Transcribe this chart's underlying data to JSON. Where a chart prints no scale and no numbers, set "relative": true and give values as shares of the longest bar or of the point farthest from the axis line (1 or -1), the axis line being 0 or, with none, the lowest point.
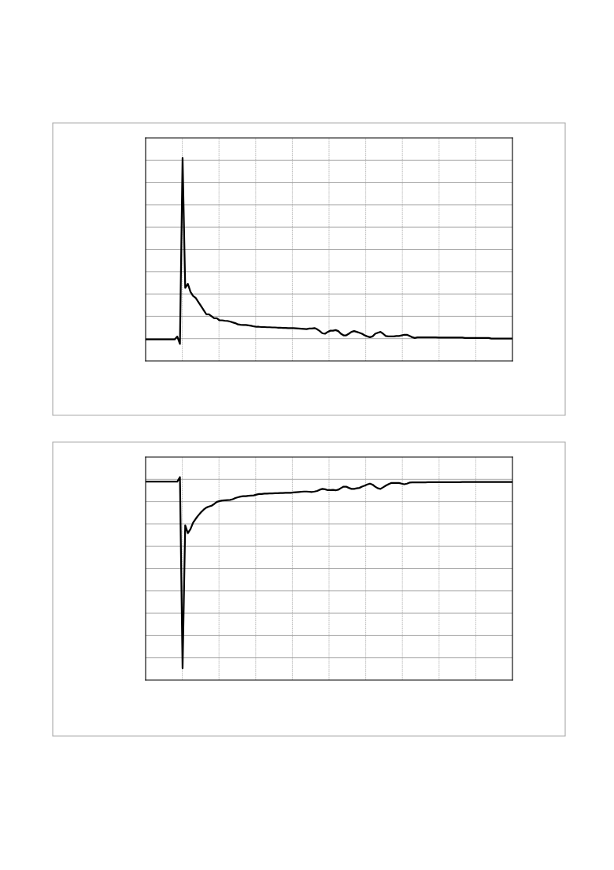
{
  "chart_data": [
    {
      "type": "line",
      "relative": true,
      "grid": true,
      "categories": [
        null,
        null,
        null,
        null,
        null,
        null,
        null,
        null,
        null,
        null,
        null,
        null,
        null,
        null,
        null,
        null,
        null,
        null,
        null,
        null,
        null,
        null,
        null,
        null,
        null,
        null,
        null,
        null,
        null,
        null,
        null,
        null,
        null,
        null,
        null,
        null,
        null,
        null,
        null,
        null,
        null,
        null,
        null,
        null,
        null,
        null,
        null,
        null,
        null,
        null,
        null,
        null,
        null,
        null,
        null,
        null,
        null,
        null,
        null,
        null,
        null,
        null,
        null,
        null,
        null,
        null,
        null,
        null,
        null,
        null,
        null,
        null,
        null,
        null,
        null,
        null,
        null,
        null,
        null,
        null,
        null,
        null,
        null,
        null,
        null,
        null,
        null,
        null,
        null,
        null,
        null,
        null,
        null,
        null,
        null,
        null,
        null,
        null,
        null,
        null,
        null,
        null,
        null,
        null,
        null,
        null,
        null,
        null,
        null,
        null,
        null,
        null,
        null,
        null,
        null,
        null,
        null,
        null,
        null,
        null,
        null,
        null,
        null,
        null,
        null,
        null,
        null,
        null,
        null,
        null,
        null,
        null,
        null,
        null,
        null,
        null,
        null,
        null,
        null,
        null
      ],
      "series": [
        {
          "color": "#000000",
          "values": [
            0.106,
            0.106,
            0.106,
            0.106,
            0.106,
            0.106,
            0.106,
            0.106,
            0.106,
            0.106,
            0.106,
            0.106,
            0.12,
            0.084,
            1.0,
            0.36,
            0.38,
            0.34,
            0.32,
            0.31,
            0.29,
            0.27,
            0.25,
            0.23,
            0.23,
            0.22,
            0.21,
            0.21,
            0.2,
            0.2,
            0.198,
            0.197,
            0.194,
            0.19,
            0.186,
            0.18,
            0.178,
            0.177,
            0.177,
            0.175,
            0.173,
            0.17,
            0.168,
            0.168,
            0.167,
            0.167,
            0.166,
            0.166,
            0.165,
            0.165,
            0.164,
            0.164,
            0.163,
            0.163,
            0.162,
            0.162,
            0.162,
            0.161,
            0.16,
            0.159,
            0.158,
            0.157,
            0.16,
            0.16,
            0.162,
            0.156,
            0.147,
            0.136,
            0.134,
            0.143,
            0.149,
            0.149,
            0.152,
            0.147,
            0.134,
            0.126,
            0.126,
            0.134,
            0.143,
            0.147,
            0.143,
            0.139,
            0.134,
            0.126,
            0.121,
            0.117,
            0.121,
            0.134,
            0.139,
            0.143,
            0.134,
            0.123,
            0.121,
            0.121,
            0.121,
            0.123,
            0.123,
            0.126,
            0.129,
            0.129,
            0.123,
            0.117,
            0.113,
            0.116,
            0.116,
            0.116,
            0.116,
            0.116,
            0.116,
            0.116,
            0.116,
            0.115,
            0.115,
            0.115,
            0.115,
            0.115,
            0.115,
            0.115,
            0.115,
            0.115,
            0.115,
            0.113,
            0.113,
            0.113,
            0.113,
            0.113,
            0.113,
            0.113,
            0.113,
            0.113,
            0.113,
            0.11,
            0.11,
            0.11,
            0.11,
            0.11,
            0.11,
            0.11,
            0.11,
            0.11
          ]
        }
      ]
    },
    {
      "type": "line",
      "relative": true,
      "grid": true,
      "categories": [
        null,
        null,
        null,
        null,
        null,
        null,
        null,
        null,
        null,
        null,
        null,
        null,
        null,
        null,
        null,
        null,
        null,
        null,
        null,
        null,
        null,
        null,
        null,
        null,
        null,
        null,
        null,
        null,
        null,
        null,
        null,
        null,
        null,
        null,
        null,
        null,
        null,
        null,
        null,
        null,
        null,
        null,
        null,
        null,
        null,
        null,
        null,
        null,
        null,
        null,
        null,
        null,
        null,
        null,
        null,
        null,
        null,
        null,
        null,
        null,
        null,
        null,
        null,
        null,
        null,
        null,
        null,
        null,
        null,
        null,
        null,
        null,
        null,
        null,
        null,
        null,
        null,
        null,
        null,
        null,
        null,
        null,
        null,
        null,
        null,
        null,
        null,
        null,
        null,
        null,
        null,
        null,
        null,
        null,
        null,
        null,
        null,
        null,
        null,
        null,
        null,
        null,
        null,
        null,
        null,
        null,
        null,
        null,
        null,
        null,
        null,
        null,
        null,
        null,
        null,
        null,
        null,
        null,
        null,
        null,
        null,
        null,
        null,
        null,
        null,
        null,
        null,
        null,
        null,
        null,
        null,
        null,
        null,
        null,
        null,
        null,
        null,
        null,
        null,
        null
      ],
      "series": [
        {
          "color": "#000000",
          "values": [
            0.978,
            0.978,
            0.978,
            0.978,
            0.978,
            0.978,
            0.978,
            0.978,
            0.978,
            0.978,
            0.978,
            0.978,
            0.978,
            1.0,
            0.058,
            0.763,
            0.724,
            0.744,
            0.776,
            0.795,
            0.812,
            0.827,
            0.84,
            0.85,
            0.855,
            0.859,
            0.868,
            0.878,
            0.882,
            0.885,
            0.886,
            0.887,
            0.888,
            0.891,
            0.897,
            0.901,
            0.904,
            0.906,
            0.906,
            0.908,
            0.909,
            0.91,
            0.914,
            0.917,
            0.917,
            0.919,
            0.919,
            0.92,
            0.92,
            0.921,
            0.921,
            0.922,
            0.922,
            0.923,
            0.923,
            0.923,
            0.925,
            0.926,
            0.927,
            0.928,
            0.929,
            0.929,
            0.928,
            0.927,
            0.929,
            0.932,
            0.938,
            0.942,
            0.94,
            0.936,
            0.936,
            0.937,
            0.935,
            0.938,
            0.946,
            0.953,
            0.953,
            0.947,
            0.942,
            0.942,
            0.945,
            0.947,
            0.953,
            0.958,
            0.964,
            0.968,
            0.963,
            0.953,
            0.945,
            0.942,
            0.95,
            0.958,
            0.965,
            0.971,
            0.971,
            0.971,
            0.971,
            0.968,
            0.965,
            0.968,
            0.973,
            0.974,
            0.974,
            0.974,
            0.974,
            0.974,
            0.974,
            0.975,
            0.975,
            0.975,
            0.975,
            0.975,
            0.975,
            0.975,
            0.975,
            0.975,
            0.975,
            0.975,
            0.975,
            0.975,
            0.976,
            0.976,
            0.976,
            0.976,
            0.976,
            0.976,
            0.976,
            0.976,
            0.976,
            0.976,
            0.976,
            0.976,
            0.976,
            0.976,
            0.976,
            0.976,
            0.976,
            0.976,
            0.976,
            0.976
          ]
        }
      ]
    }
  ]
}
